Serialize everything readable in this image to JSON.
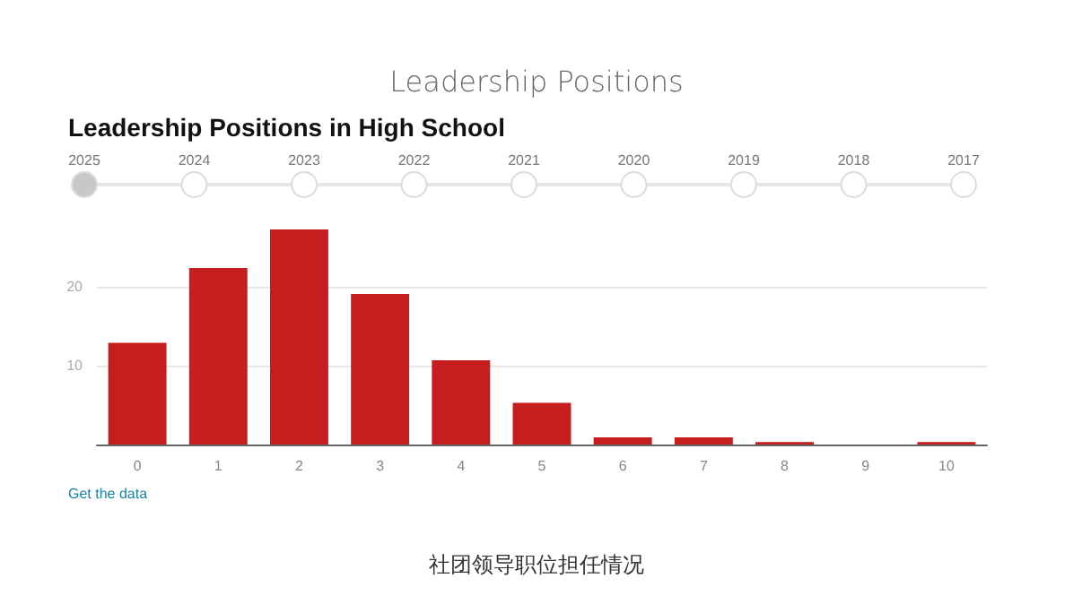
{
  "chart_data": {
    "type": "bar",
    "title": "Leadership Positions",
    "subtitle": "Leadership Positions in High School",
    "categories": [
      "0",
      "1",
      "2",
      "3",
      "4",
      "5",
      "6",
      "7",
      "8",
      "9",
      "10"
    ],
    "values": [
      12.9,
      22.4,
      27.3,
      19.1,
      10.7,
      5.3,
      0.9,
      0.9,
      0.3,
      0,
      0.3
    ],
    "color": "#c41e1e",
    "ylim": [
      0,
      27.3
    ],
    "yticks": [
      {
        "value": 0,
        "label": null
      },
      10,
      20
    ],
    "grid": "y",
    "annotations": [
      "2025",
      "2024",
      "2023",
      "2022",
      "2021",
      "2020",
      "2019",
      "2018",
      "2017",
      "Get the data",
      "社团领导职位担任情况"
    ]
  }
}
